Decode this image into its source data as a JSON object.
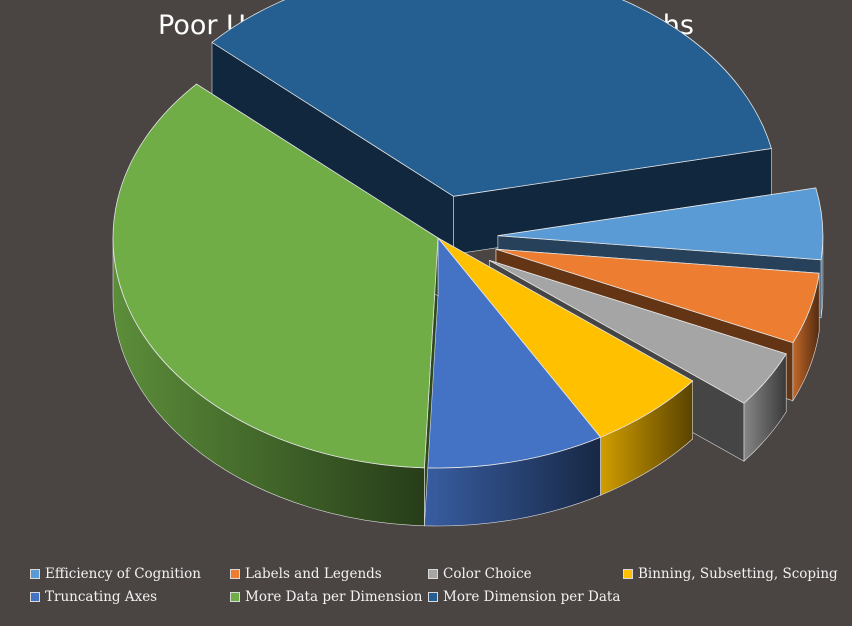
{
  "chart_data": {
    "type": "pie",
    "title": "Poor Usage of Characteristics in Graphs",
    "categories": [
      "Efficiency of Cognition",
      "Labels and Legends",
      "Color Choice",
      "Binning, Subsetting, Scoping",
      "Truncating Axes",
      "More Data per Dimension",
      "More Dimension per Data"
    ],
    "values": [
      5,
      5,
      4,
      6,
      9,
      36,
      35
    ],
    "colors": [
      "#5b9bd5",
      "#ed7d31",
      "#a5a5a5",
      "#ffc000",
      "#4472c4",
      "#70ad47",
      "#255e91"
    ],
    "exploded": [
      true,
      true,
      true,
      false,
      false,
      false,
      true
    ],
    "legend_position": "bottom",
    "style": "3d-exploded-pie"
  }
}
